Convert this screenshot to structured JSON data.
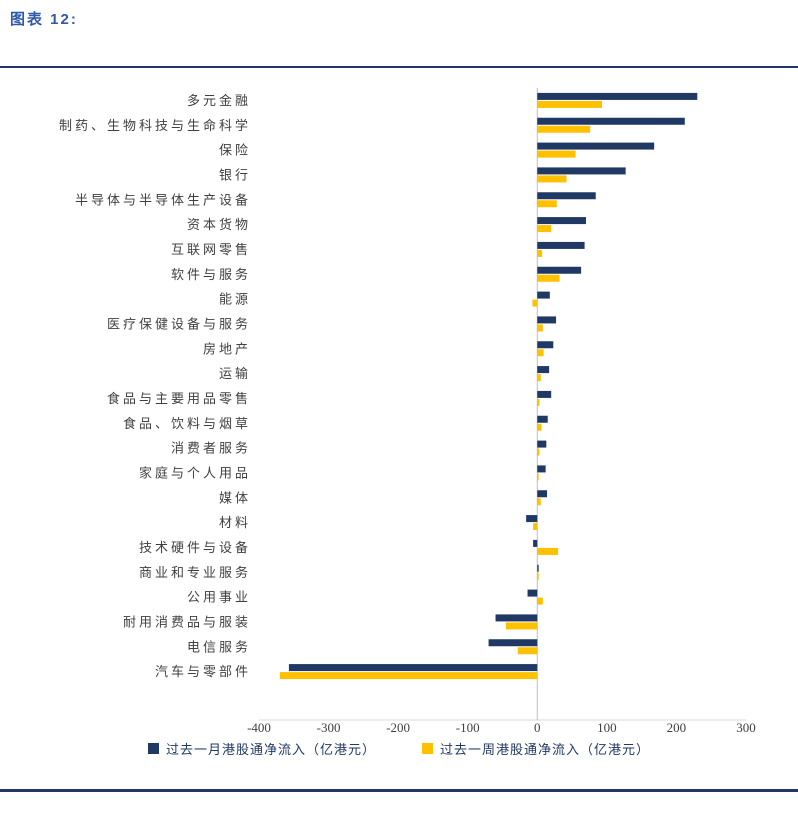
{
  "figure": {
    "title": "图表 12:",
    "accent_color": "#2e58a8",
    "rule_color": "#1f3864"
  },
  "chart_data": {
    "type": "bar",
    "orientation": "horizontal",
    "title": "",
    "xlabel": "",
    "ylabel": "",
    "xlim": [
      -400,
      300
    ],
    "x_ticks": [
      -400,
      -300,
      -200,
      -100,
      0,
      100,
      200,
      300
    ],
    "grid": false,
    "legend_position": "bottom",
    "categories": [
      "多元金融",
      "制药、生物科技与生命科学",
      "保险",
      "银行",
      "半导体与半导体生产设备",
      "资本货物",
      "互联网零售",
      "软件与服务",
      "能源",
      "医疗保健设备与服务",
      "房地产",
      "运输",
      "食品与主要用品零售",
      "食品、饮料与烟草",
      "消费者服务",
      "家庭与个人用品",
      "媒体",
      "材料",
      "技术硬件与设备",
      "商业和专业服务",
      "公用事业",
      "耐用消费品与服装",
      "电信服务",
      "汽车与零部件"
    ],
    "series": [
      {
        "name": "过去一月港股通净流入（亿港元）",
        "color": "#1f3864",
        "values": [
          230,
          212,
          168,
          127,
          84,
          70,
          68,
          63,
          18,
          27,
          23,
          17,
          20,
          15,
          13,
          12,
          14,
          -16,
          -6,
          2,
          -14,
          -60,
          -70,
          -357
        ]
      },
      {
        "name": "过去一周港股通净流入（亿港元）",
        "color": "#ffc000",
        "values": [
          93,
          76,
          55,
          42,
          28,
          20,
          7,
          32,
          -7,
          8,
          9,
          5,
          3,
          6,
          3,
          2,
          5,
          -6,
          30,
          2,
          8,
          -45,
          -28,
          -370
        ]
      }
    ]
  }
}
